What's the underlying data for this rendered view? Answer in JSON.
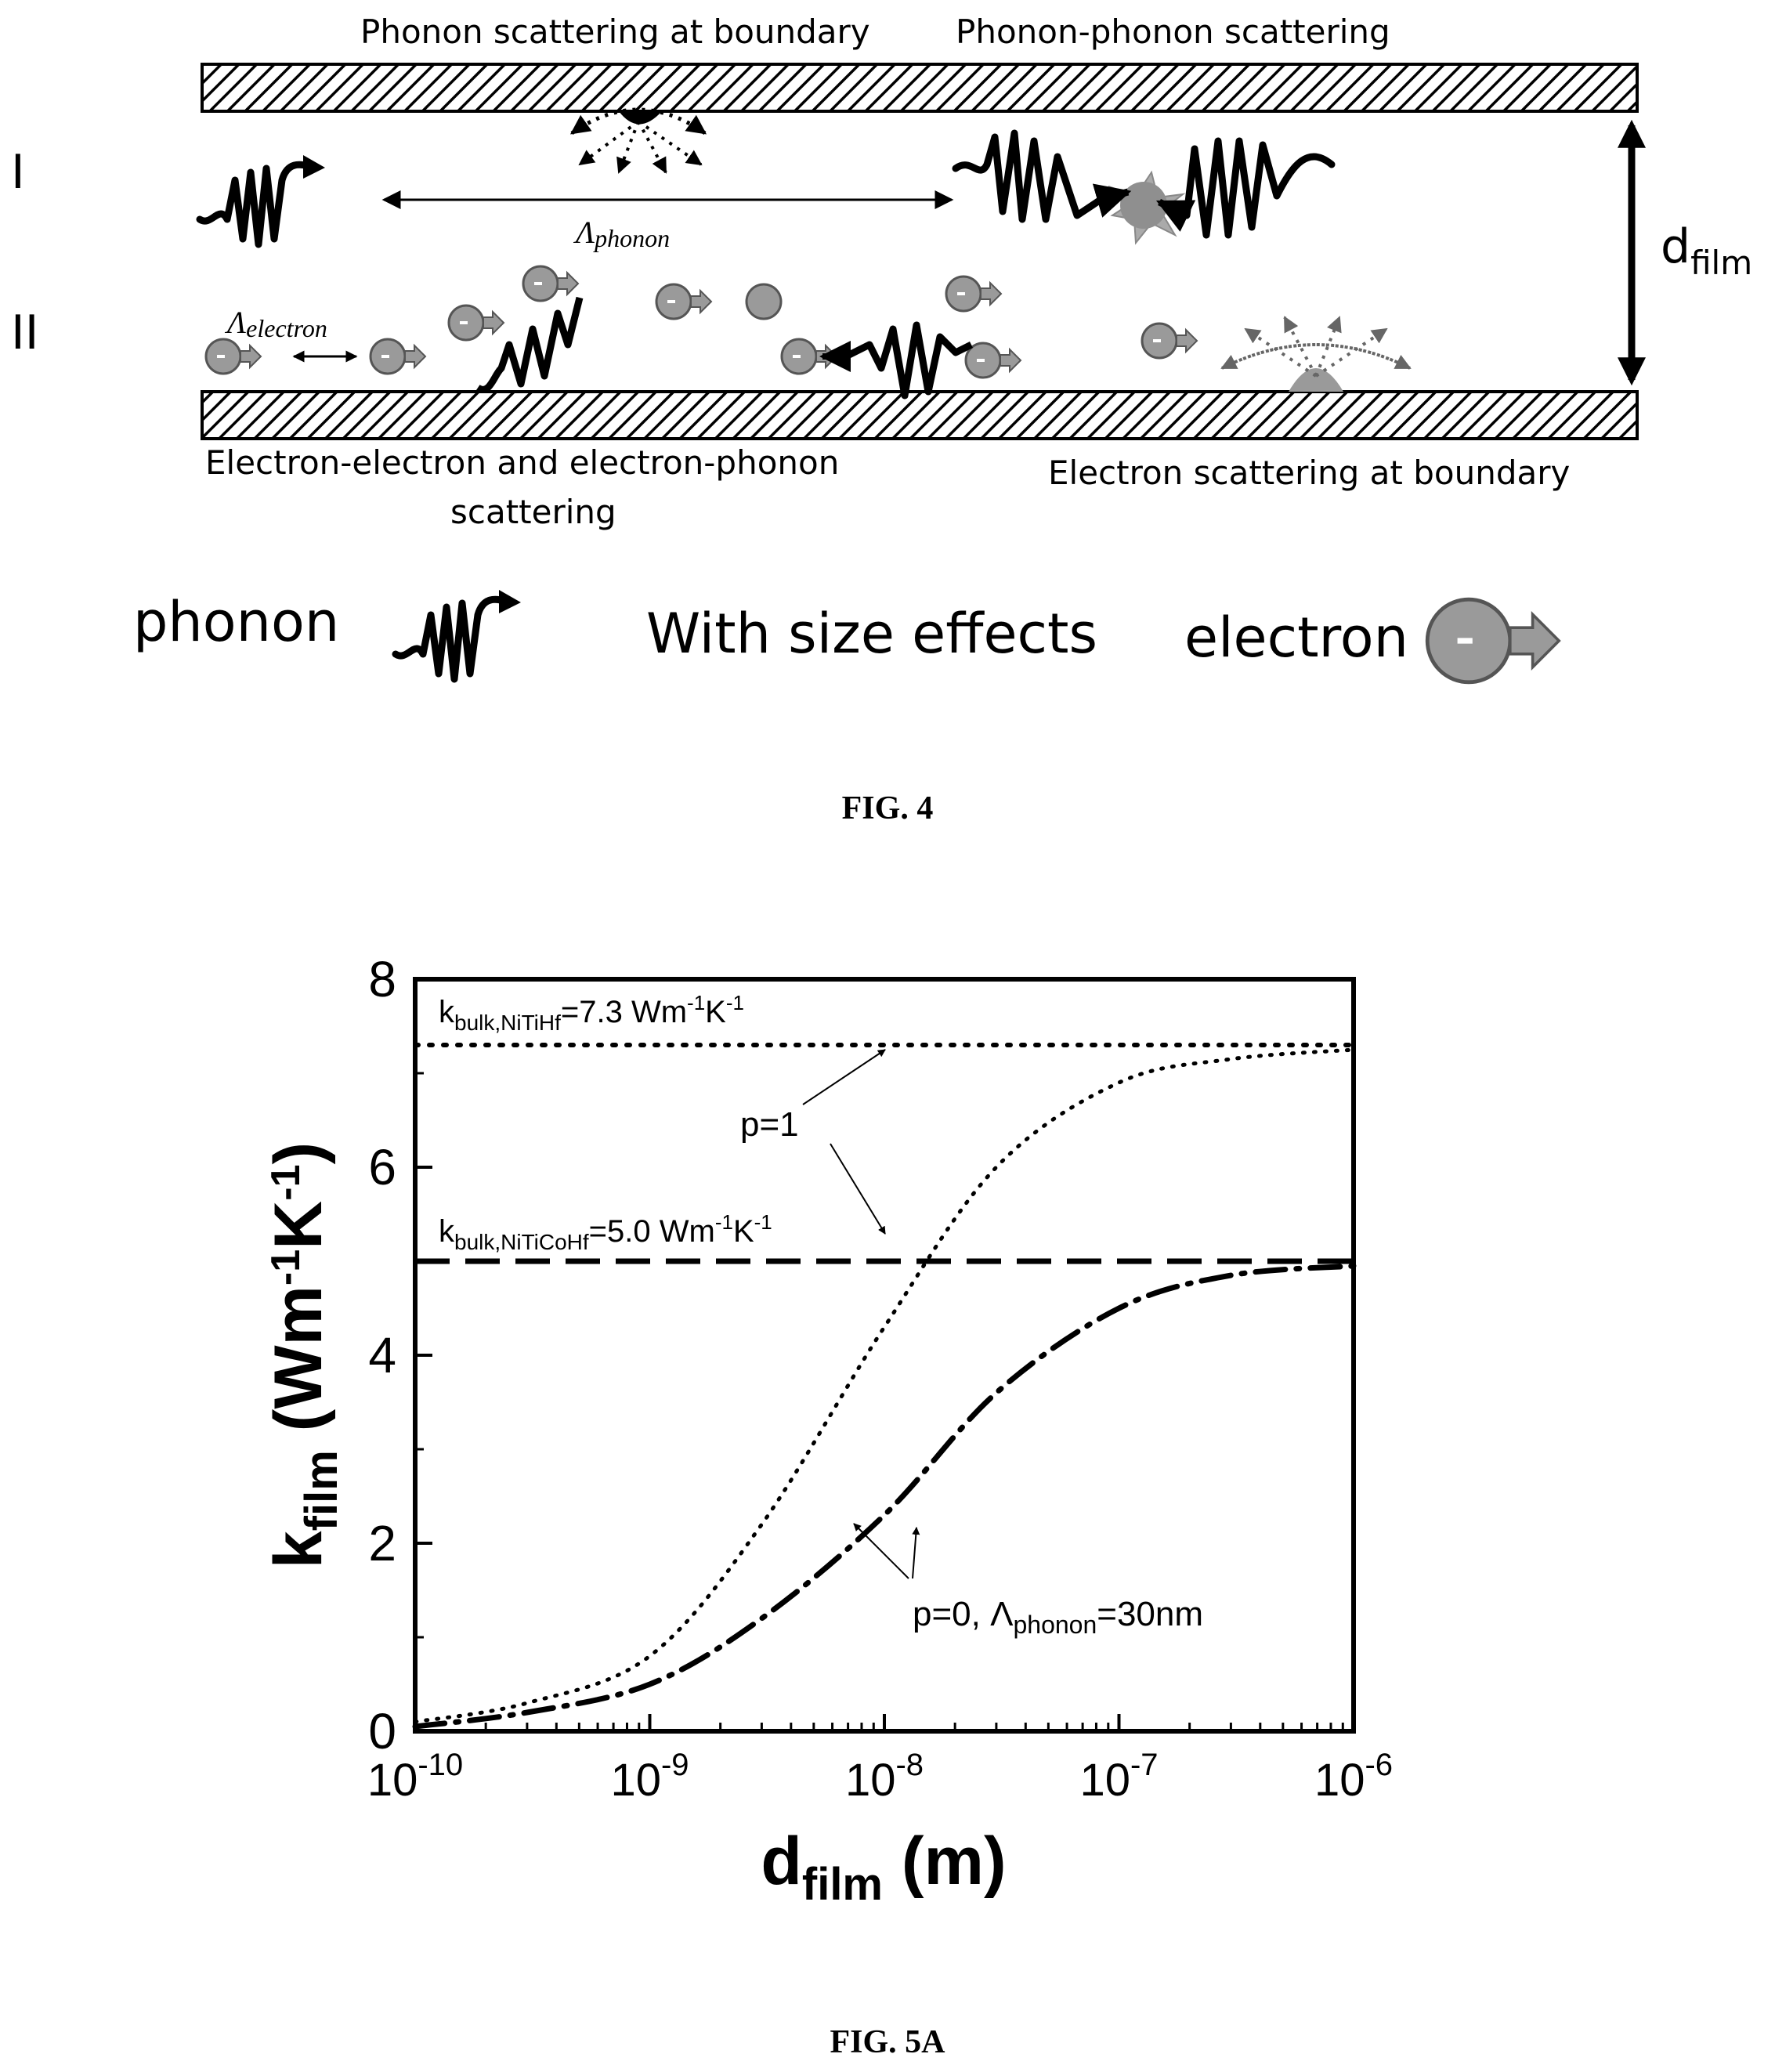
{
  "fig4": {
    "caption": "FIG. 4",
    "label_boundary_phonon": "Phonon scattering at boundary",
    "label_phonon_phonon": "Phonon-phonon scattering",
    "region_1": "I",
    "region_2": "II",
    "lambda_phonon": "Λphonon",
    "lambda_electron": "Λelectron",
    "thickness": "dfilm",
    "label_ee_ep_line1": "Electron-electron and electron-phonon",
    "label_ee_ep_line2": "scattering",
    "label_electron_boundary": "Electron scattering at boundary",
    "legend_phonon": "phonon",
    "legend_size_effects": "With size effects",
    "legend_electron": "electron"
  },
  "fig5a": {
    "caption": "FIG. 5A",
    "chart_data": {
      "type": "line",
      "xlabel": "dfilm (m)",
      "ylabel": "kfilm (Wm-1K-1)",
      "x_scale": "log",
      "xlim": [
        1e-10,
        1e-06
      ],
      "ylim": [
        0,
        8
      ],
      "x_tick_labels": [
        "10-10",
        "10-9",
        "10-8",
        "10-7",
        "10-6"
      ],
      "y_tick_labels": [
        "0",
        "2",
        "4",
        "6",
        "8"
      ],
      "series": [
        {
          "name": "p=1",
          "style": "dotted",
          "color": "#000000",
          "x": [
            1e-10,
            3e-10,
            1e-09,
            3e-09,
            1e-08,
            3e-08,
            1e-07,
            3e-07,
            1e-06
          ],
          "y": [
            0.1,
            0.3,
            0.8,
            2.2,
            4.3,
            6.0,
            6.9,
            7.15,
            7.25
          ]
        },
        {
          "name": "p=0, Λphonon=30nm",
          "style": "dash-dot",
          "color": "#000000",
          "x": [
            1e-10,
            3e-10,
            1e-09,
            3e-09,
            1e-08,
            3e-08,
            1e-07,
            3e-07,
            1e-06
          ],
          "y": [
            0.05,
            0.2,
            0.5,
            1.2,
            2.3,
            3.6,
            4.5,
            4.85,
            4.95
          ]
        },
        {
          "name": "kbulk,NiTiHf=7.3 Wm-1K-1",
          "style": "dotted-reference",
          "color": "#000000",
          "x": [
            1e-10,
            1e-06
          ],
          "y": [
            7.3,
            7.3
          ]
        },
        {
          "name": "kbulk,NiTiCoHf=5.0 Wm-1K-1",
          "style": "dashed-reference",
          "color": "#000000",
          "x": [
            1e-10,
            1e-06
          ],
          "y": [
            5.0,
            5.0
          ]
        }
      ],
      "annotations": [
        "p=1",
        "p=0, Λphonon=30nm",
        "kbulk,NiTiHf=7.3 Wm-1K-1",
        "kbulk,NiTiCoHf=5.0 Wm-1K-1"
      ],
      "grid": false,
      "legend": "none"
    }
  },
  "colors": {
    "ink": "#000000",
    "particle": "#9a9a9a",
    "particle_edge": "#555555"
  }
}
